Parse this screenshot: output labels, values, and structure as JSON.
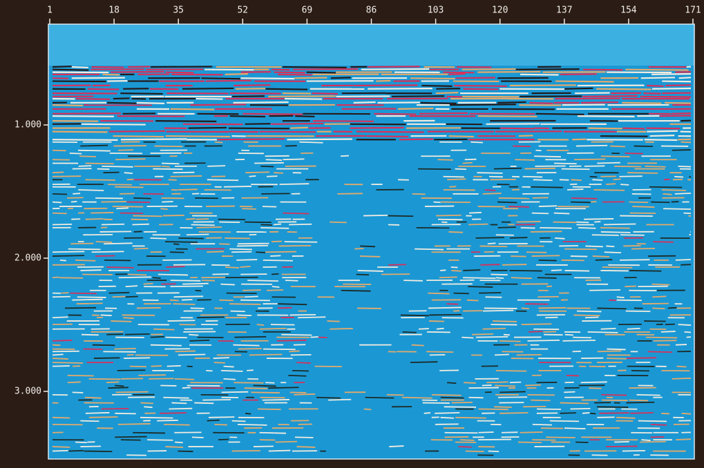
{
  "x_axis": {
    "ticks": [
      1,
      18,
      35,
      52,
      69,
      86,
      103,
      120,
      137,
      154,
      171
    ]
  },
  "y_axis": {
    "ticks": [
      {
        "value": 1,
        "label": "1.000"
      },
      {
        "value": 2,
        "label": "2.000"
      },
      {
        "value": 3,
        "label": "3.000"
      }
    ]
  }
}
